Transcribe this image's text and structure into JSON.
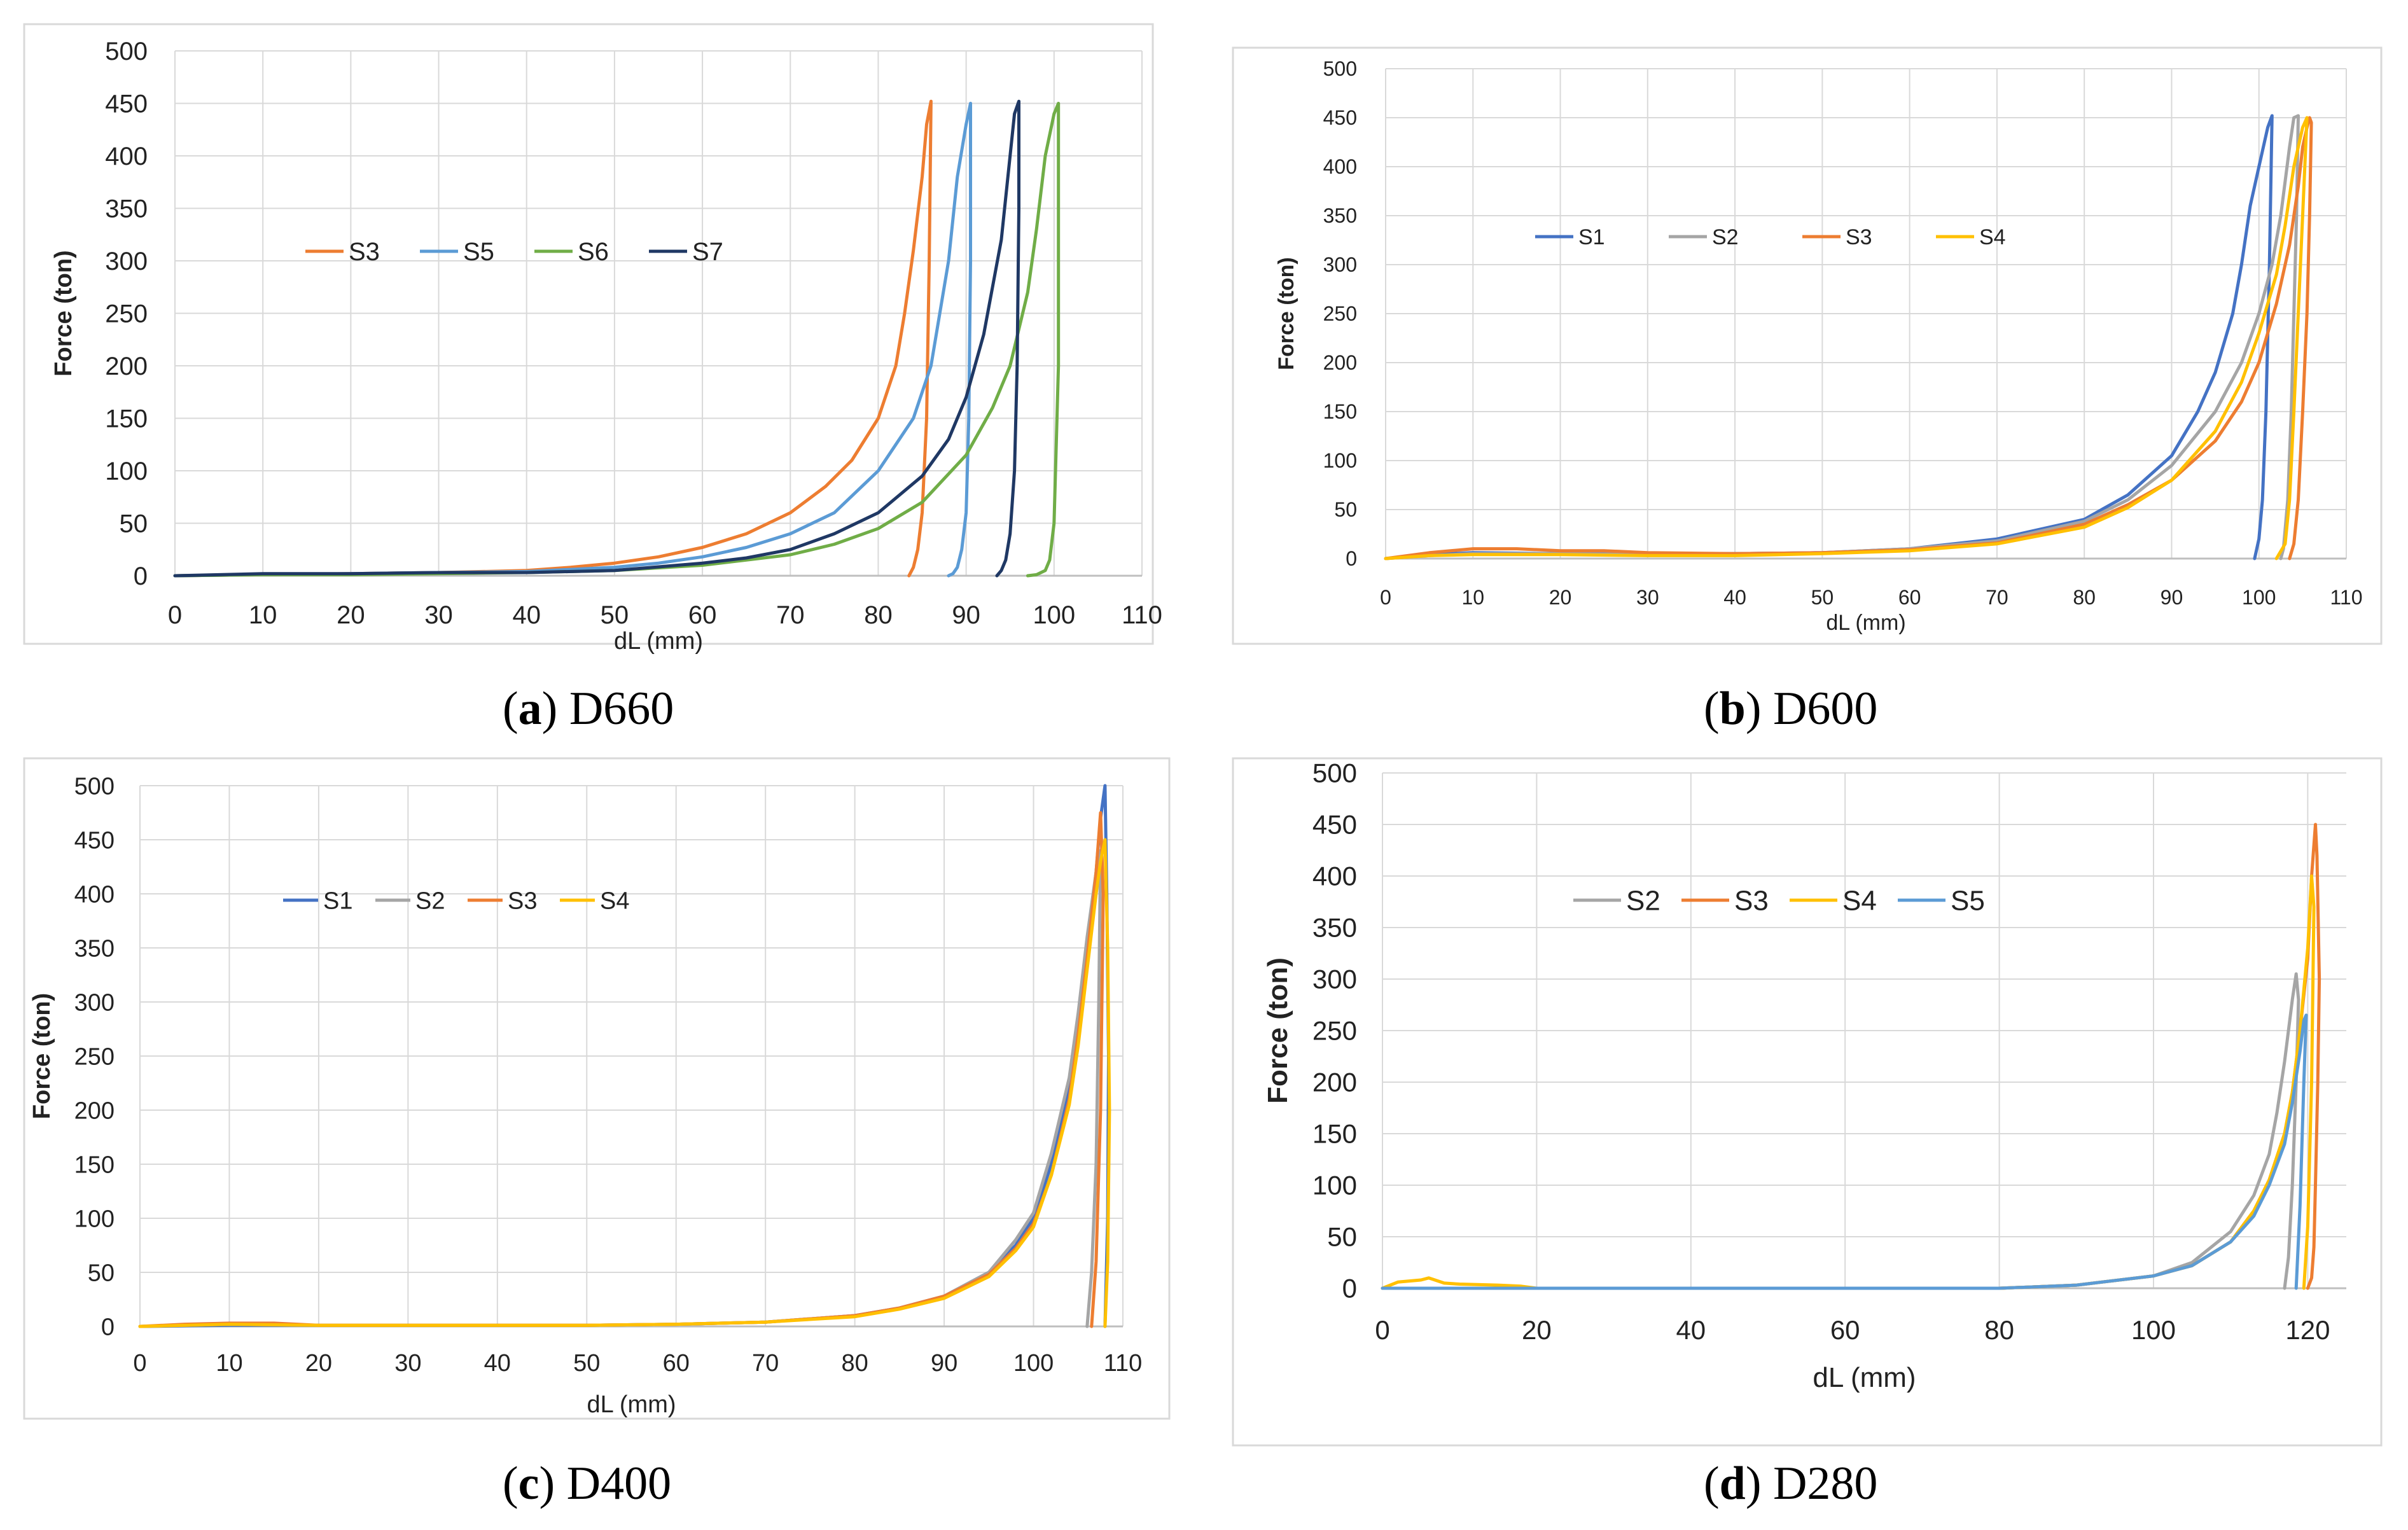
{
  "chart_data": [
    {
      "type": "line",
      "panel_label": "a",
      "title": "D660",
      "xlabel": "dL (mm)",
      "ylabel": "Force (ton)",
      "xlim": [
        0,
        110
      ],
      "ylim": [
        0,
        500
      ],
      "xticks": [
        "0",
        "10",
        "20",
        "30",
        "40",
        "50",
        "60",
        "70",
        "80",
        "90",
        "100",
        "110"
      ],
      "yticks": [
        "0",
        "50",
        "100",
        "150",
        "200",
        "250",
        "300",
        "350",
        "400",
        "450",
        "500"
      ],
      "grid": true,
      "legend_position": "upper-left",
      "series": [
        {
          "name": "S3",
          "color": "#ED7D31",
          "x": [
            0,
            10,
            20,
            30,
            40,
            45,
            50,
            55,
            60,
            65,
            70,
            74,
            77,
            80,
            82,
            83,
            84,
            85,
            85.5,
            86,
            85.8,
            85.5,
            85,
            84.5,
            84,
            83.5
          ],
          "y": [
            0,
            1,
            2,
            3,
            5,
            8,
            12,
            18,
            27,
            40,
            60,
            85,
            110,
            150,
            200,
            250,
            310,
            380,
            430,
            452,
            300,
            150,
            60,
            25,
            8,
            0
          ]
        },
        {
          "name": "S5",
          "color": "#5B9BD5",
          "x": [
            0,
            10,
            20,
            30,
            40,
            50,
            55,
            60,
            65,
            70,
            75,
            80,
            84,
            86,
            88,
            89,
            90,
            90.5,
            90.5,
            90.3,
            90,
            89.5,
            89,
            88.5,
            88
          ],
          "y": [
            0,
            1,
            2,
            3,
            4,
            8,
            12,
            18,
            27,
            40,
            60,
            100,
            150,
            200,
            300,
            380,
            430,
            450,
            300,
            150,
            60,
            25,
            8,
            2,
            0
          ]
        },
        {
          "name": "S6",
          "color": "#70AD47",
          "x": [
            0,
            10,
            20,
            30,
            40,
            50,
            60,
            65,
            70,
            75,
            80,
            85,
            90,
            93,
            95,
            97,
            98,
            99,
            100,
            100.5,
            100.5,
            100,
            99.5,
            99,
            98,
            97
          ],
          "y": [
            0,
            1,
            1,
            2,
            3,
            5,
            10,
            15,
            20,
            30,
            45,
            70,
            115,
            160,
            200,
            270,
            330,
            400,
            440,
            450,
            200,
            50,
            15,
            5,
            1,
            0
          ]
        },
        {
          "name": "S7",
          "color": "#1F3864",
          "x": [
            0,
            10,
            20,
            30,
            40,
            50,
            60,
            65,
            70,
            75,
            80,
            85,
            88,
            90,
            92,
            94,
            95,
            95.5,
            96,
            96,
            95.8,
            95.5,
            95,
            94.5,
            94,
            93.5
          ],
          "y": [
            0,
            2,
            2,
            3,
            3,
            5,
            12,
            17,
            25,
            40,
            60,
            95,
            130,
            170,
            230,
            320,
            400,
            440,
            452,
            350,
            200,
            100,
            40,
            15,
            5,
            0
          ]
        }
      ]
    },
    {
      "type": "line",
      "panel_label": "b",
      "title": "D600",
      "xlabel": "dL (mm)",
      "ylabel": "Force (ton)",
      "xlim": [
        0,
        110
      ],
      "ylim": [
        0,
        500
      ],
      "xticks": [
        "0",
        "10",
        "20",
        "30",
        "40",
        "50",
        "60",
        "70",
        "80",
        "90",
        "100",
        "110"
      ],
      "yticks": [
        "0",
        "50",
        "100",
        "150",
        "200",
        "250",
        "300",
        "350",
        "400",
        "450",
        "500"
      ],
      "grid": true,
      "legend_position": "upper-left",
      "series": [
        {
          "name": "S1",
          "color": "#4472C4",
          "x": [
            0,
            5,
            10,
            20,
            30,
            40,
            50,
            60,
            70,
            80,
            85,
            90,
            93,
            95,
            97,
            98,
            99,
            100,
            101,
            101.5,
            101.2,
            100.8,
            100.4,
            100,
            99.5
          ],
          "y": [
            0,
            4,
            6,
            5,
            5,
            5,
            6,
            10,
            20,
            40,
            65,
            105,
            150,
            190,
            250,
            300,
            360,
            400,
            440,
            452,
            300,
            150,
            60,
            20,
            0
          ]
        },
        {
          "name": "S2",
          "color": "#A5A5A5",
          "x": [
            0,
            5,
            10,
            20,
            30,
            40,
            50,
            60,
            70,
            80,
            85,
            90,
            95,
            98,
            100,
            101.5,
            102.5,
            103.5,
            104,
            104.5,
            104.3,
            104,
            103.7,
            103.3,
            102.8,
            102.5
          ],
          "y": [
            0,
            3,
            5,
            5,
            4,
            5,
            6,
            10,
            18,
            38,
            60,
            95,
            150,
            200,
            250,
            300,
            350,
            420,
            450,
            452,
            350,
            250,
            150,
            60,
            10,
            0
          ]
        },
        {
          "name": "S3",
          "color": "#ED7D31",
          "x": [
            0,
            5,
            10,
            15,
            20,
            25,
            30,
            40,
            50,
            60,
            70,
            80,
            85,
            90,
            95,
            98,
            100,
            102,
            103.5,
            104.5,
            105,
            105.5,
            105.8,
            106,
            105.8,
            105.5,
            105,
            104.5,
            104,
            103.5
          ],
          "y": [
            0,
            6,
            10,
            10,
            8,
            8,
            6,
            5,
            6,
            9,
            16,
            35,
            55,
            80,
            120,
            160,
            200,
            260,
            320,
            380,
            420,
            440,
            450,
            445,
            350,
            250,
            150,
            60,
            15,
            0
          ]
        },
        {
          "name": "S4",
          "color": "#FFC000",
          "x": [
            0,
            5,
            10,
            20,
            30,
            40,
            50,
            60,
            70,
            80,
            85,
            90,
            95,
            98,
            100,
            102,
            103,
            104,
            105,
            105.5,
            105,
            104.5,
            104,
            103.5,
            103,
            102
          ],
          "y": [
            0,
            3,
            4,
            4,
            3,
            3,
            5,
            8,
            15,
            32,
            52,
            80,
            130,
            180,
            230,
            290,
            340,
            400,
            440,
            450,
            350,
            250,
            150,
            60,
            15,
            0
          ]
        }
      ]
    },
    {
      "type": "line",
      "panel_label": "c",
      "title": "D400",
      "xlabel": "dL (mm)",
      "ylabel": "Force (ton)",
      "xlim": [
        0,
        110
      ],
      "ylim": [
        0,
        500
      ],
      "xticks": [
        "0",
        "10",
        "20",
        "30",
        "40",
        "50",
        "60",
        "70",
        "80",
        "90",
        "100",
        "110"
      ],
      "yticks": [
        "0",
        "50",
        "100",
        "150",
        "200",
        "250",
        "300",
        "350",
        "400",
        "450",
        "500"
      ],
      "grid": true,
      "legend_position": "upper-left",
      "series": [
        {
          "name": "S1",
          "color": "#4472C4",
          "x": [
            0,
            10,
            20,
            30,
            40,
            50,
            60,
            70,
            80,
            85,
            90,
            95,
            98,
            100,
            102,
            104,
            105,
            106,
            107,
            107.5,
            108,
            108.2,
            108.4,
            108.3,
            108
          ],
          "y": [
            0,
            1,
            1,
            1,
            1,
            1,
            2,
            4,
            10,
            17,
            28,
            50,
            75,
            100,
            150,
            220,
            280,
            350,
            420,
            470,
            500,
            400,
            250,
            100,
            0
          ]
        },
        {
          "name": "S2",
          "color": "#A5A5A5",
          "x": [
            0,
            10,
            20,
            30,
            40,
            50,
            60,
            70,
            80,
            85,
            90,
            95,
            98,
            100,
            102,
            104,
            105,
            106,
            107,
            107.5,
            107.3,
            107,
            106.5,
            106
          ],
          "y": [
            0,
            2,
            1,
            1,
            1,
            1,
            2,
            4,
            10,
            17,
            28,
            50,
            80,
            105,
            160,
            230,
            290,
            360,
            420,
            440,
            300,
            150,
            50,
            0
          ]
        },
        {
          "name": "S3",
          "color": "#ED7D31",
          "x": [
            0,
            5,
            10,
            15,
            20,
            30,
            40,
            50,
            60,
            70,
            80,
            85,
            90,
            95,
            98,
            100,
            102,
            104,
            105,
            106,
            107,
            107.5,
            107.8,
            107.5,
            107,
            106.5
          ],
          "y": [
            0,
            2,
            3,
            3,
            1,
            1,
            1,
            1,
            2,
            4,
            10,
            17,
            28,
            48,
            72,
            95,
            140,
            210,
            270,
            340,
            420,
            475,
            400,
            200,
            60,
            0
          ]
        },
        {
          "name": "S4",
          "color": "#FFC000",
          "x": [
            0,
            10,
            20,
            30,
            40,
            50,
            60,
            70,
            80,
            85,
            90,
            95,
            98,
            100,
            102,
            104,
            105,
            106,
            107,
            107.5,
            108,
            108.3,
            108.5,
            108.3,
            108
          ],
          "y": [
            0,
            2,
            1,
            1,
            1,
            1,
            2,
            4,
            9,
            16,
            26,
            46,
            70,
            92,
            140,
            205,
            260,
            330,
            400,
            430,
            450,
            350,
            200,
            60,
            0
          ]
        }
      ]
    },
    {
      "type": "line",
      "panel_label": "d",
      "title": "D280",
      "xlabel": "dL (mm)",
      "ylabel": "Force (ton)",
      "xlim": [
        0,
        125
      ],
      "ylim": [
        0,
        500
      ],
      "xticks": [
        "0",
        "20",
        "40",
        "60",
        "80",
        "100",
        "120"
      ],
      "yticks": [
        "0",
        "50",
        "100",
        "150",
        "200",
        "250",
        "300",
        "350",
        "400",
        "450",
        "500"
      ],
      "grid": true,
      "legend_position": "upper-left",
      "series": [
        {
          "name": "S2",
          "color": "#A5A5A5",
          "x": [
            0,
            20,
            40,
            60,
            80,
            90,
            100,
            105,
            110,
            113,
            115,
            116,
            117,
            118,
            118.5,
            118.8,
            118.5,
            118,
            117.5,
            117
          ],
          "y": [
            0,
            0,
            0,
            0,
            0,
            3,
            12,
            25,
            55,
            90,
            130,
            170,
            220,
            280,
            305,
            280,
            200,
            100,
            30,
            0
          ]
        },
        {
          "name": "S3",
          "color": "#ED7D31",
          "x": [
            0,
            20,
            40,
            60,
            80,
            90,
            100,
            105,
            110,
            113,
            115,
            117,
            118,
            119,
            120,
            120.5,
            121,
            121.2,
            121.5,
            121.3,
            121,
            120.8,
            120.5,
            120
          ],
          "y": [
            0,
            0,
            0,
            0,
            0,
            3,
            12,
            22,
            45,
            75,
            105,
            150,
            190,
            250,
            320,
            400,
            450,
            420,
            300,
            200,
            100,
            40,
            10,
            0
          ]
        },
        {
          "name": "S4",
          "color": "#FFC000",
          "x": [
            0,
            2,
            5,
            6,
            8,
            10,
            15,
            18,
            20,
            40,
            60,
            80,
            90,
            100,
            105,
            110,
            113,
            115,
            117,
            118,
            119,
            120,
            120.5,
            120.8,
            120.5,
            120,
            119.5
          ],
          "y": [
            0,
            6,
            8,
            10,
            5,
            4,
            3,
            2,
            0,
            0,
            0,
            0,
            3,
            12,
            22,
            45,
            75,
            105,
            150,
            190,
            250,
            330,
            400,
            370,
            200,
            60,
            0
          ]
        },
        {
          "name": "S5",
          "color": "#5B9BD5",
          "x": [
            0,
            20,
            40,
            60,
            80,
            90,
            100,
            105,
            110,
            113,
            115,
            117,
            118,
            119,
            119.5,
            119.8,
            119.5,
            119,
            118.5
          ],
          "y": [
            0,
            0,
            0,
            0,
            0,
            3,
            12,
            22,
            45,
            70,
            100,
            140,
            180,
            230,
            260,
            265,
            200,
            80,
            0
          ]
        }
      ]
    }
  ],
  "captions": [
    {
      "label": "a",
      "text": " D660"
    },
    {
      "label": "b",
      "text": " D600"
    },
    {
      "label": "c",
      "text": " D400"
    },
    {
      "label": "d",
      "text": " D280"
    }
  ]
}
